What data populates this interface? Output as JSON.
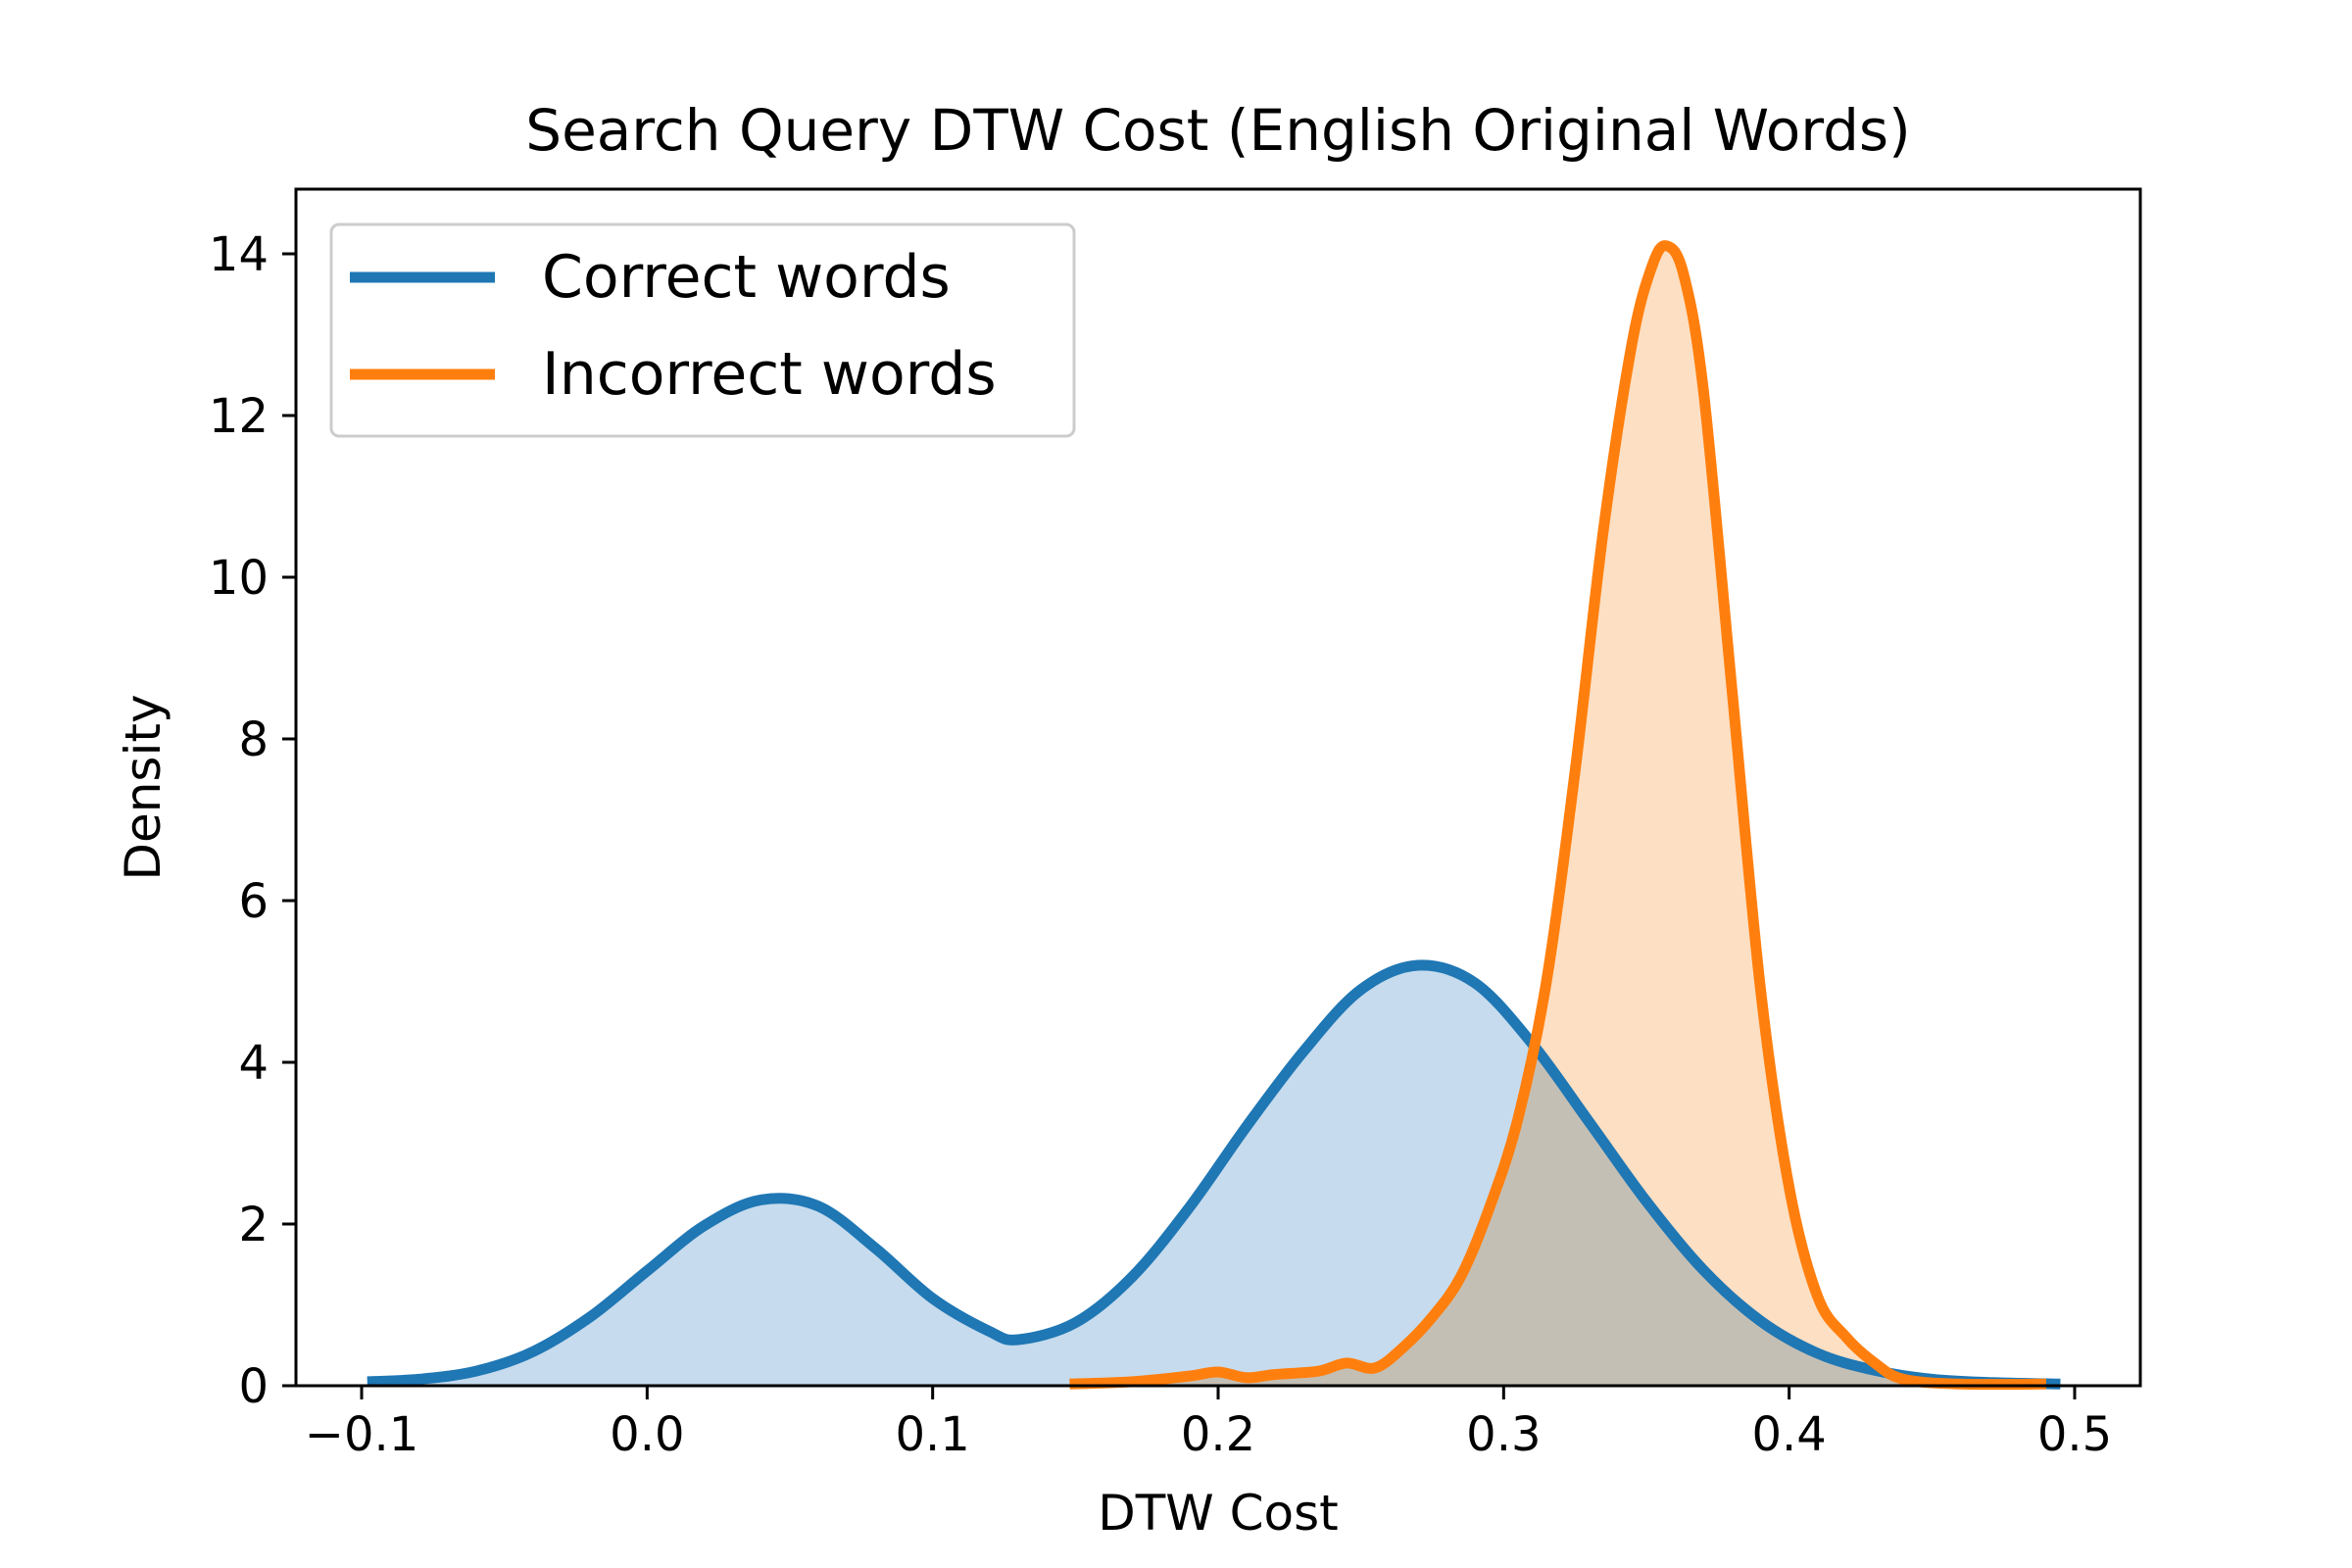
{
  "chart_data": {
    "type": "area",
    "title": "Search Query DTW Cost (English Original Words)",
    "xlabel": "DTW Cost",
    "ylabel": "Density",
    "xlim": [
      -0.123,
      0.523
    ],
    "ylim": [
      0,
      14.8
    ],
    "xticks": [
      -0.1,
      0.0,
      0.1,
      0.2,
      0.3,
      0.4,
      0.5
    ],
    "xtick_labels": [
      "−0.1",
      "0.0",
      "0.1",
      "0.2",
      "0.3",
      "0.4",
      "0.5"
    ],
    "yticks": [
      0,
      2,
      4,
      6,
      8,
      10,
      12,
      14
    ],
    "ytick_labels": [
      "0",
      "2",
      "4",
      "6",
      "8",
      "10",
      "12",
      "14"
    ],
    "grid": false,
    "legend_position": "upper-left",
    "series": [
      {
        "name": "Correct words",
        "color": "#1f77b4",
        "fill_color": "#c6dbed",
        "points": [
          [
            -0.098,
            0.05
          ],
          [
            -0.08,
            0.08
          ],
          [
            -0.06,
            0.18
          ],
          [
            -0.04,
            0.42
          ],
          [
            -0.02,
            0.85
          ],
          [
            0.0,
            1.42
          ],
          [
            0.02,
            1.98
          ],
          [
            0.04,
            2.3
          ],
          [
            0.06,
            2.22
          ],
          [
            0.08,
            1.7
          ],
          [
            0.1,
            1.08
          ],
          [
            0.12,
            0.67
          ],
          [
            0.13,
            0.57
          ],
          [
            0.15,
            0.78
          ],
          [
            0.17,
            1.35
          ],
          [
            0.19,
            2.21
          ],
          [
            0.21,
            3.21
          ],
          [
            0.23,
            4.14
          ],
          [
            0.25,
            4.9
          ],
          [
            0.27,
            5.2
          ],
          [
            0.29,
            4.98
          ],
          [
            0.31,
            4.23
          ],
          [
            0.33,
            3.26
          ],
          [
            0.35,
            2.28
          ],
          [
            0.37,
            1.43
          ],
          [
            0.39,
            0.8
          ],
          [
            0.41,
            0.4
          ],
          [
            0.43,
            0.19
          ],
          [
            0.45,
            0.08
          ],
          [
            0.47,
            0.04
          ],
          [
            0.495,
            0.02
          ]
        ]
      },
      {
        "name": "Incorrect words",
        "color": "#ff7f0e",
        "fill_color": "#fdd9b8",
        "points": [
          [
            0.148,
            0.02
          ],
          [
            0.17,
            0.05
          ],
          [
            0.19,
            0.12
          ],
          [
            0.2,
            0.17
          ],
          [
            0.21,
            0.1
          ],
          [
            0.22,
            0.14
          ],
          [
            0.235,
            0.18
          ],
          [
            0.245,
            0.28
          ],
          [
            0.255,
            0.22
          ],
          [
            0.265,
            0.48
          ],
          [
            0.275,
            0.85
          ],
          [
            0.285,
            1.35
          ],
          [
            0.295,
            2.2
          ],
          [
            0.305,
            3.3
          ],
          [
            0.315,
            5.0
          ],
          [
            0.325,
            7.6
          ],
          [
            0.335,
            10.6
          ],
          [
            0.345,
            12.9
          ],
          [
            0.352,
            13.85
          ],
          [
            0.357,
            14.1
          ],
          [
            0.363,
            13.75
          ],
          [
            0.37,
            12.3
          ],
          [
            0.38,
            8.6
          ],
          [
            0.39,
            4.9
          ],
          [
            0.4,
            2.45
          ],
          [
            0.41,
            1.1
          ],
          [
            0.42,
            0.6
          ],
          [
            0.43,
            0.28
          ],
          [
            0.44,
            0.08
          ],
          [
            0.46,
            0.02
          ],
          [
            0.49,
            0.02
          ]
        ]
      }
    ]
  }
}
